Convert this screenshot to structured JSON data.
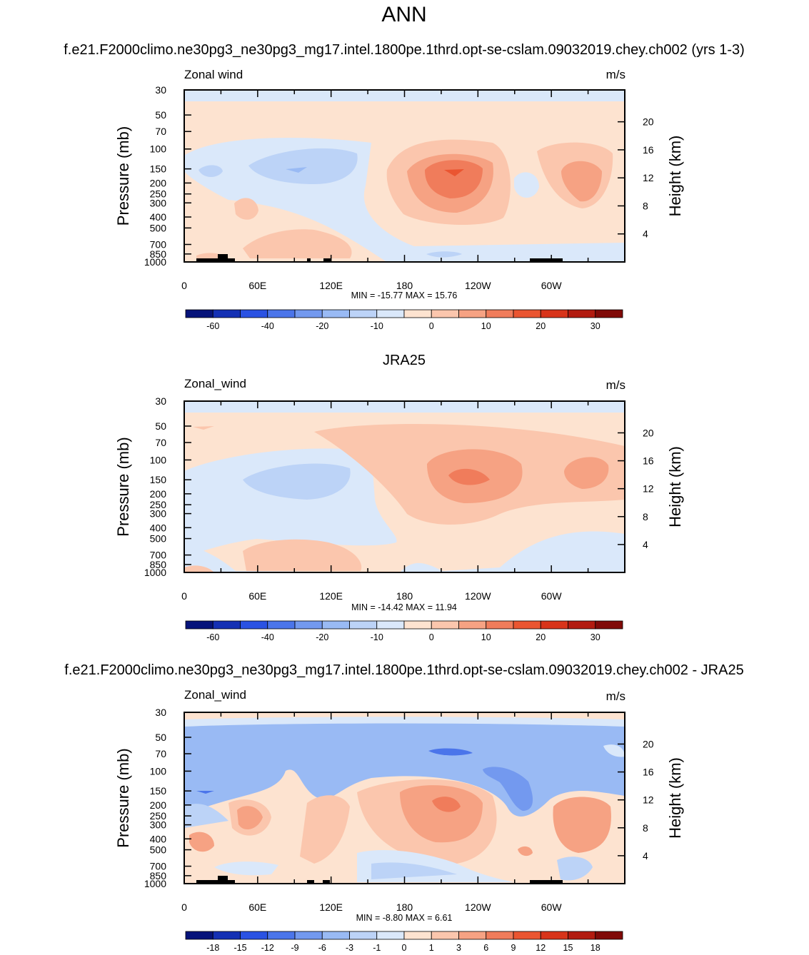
{
  "main_title": "ANN",
  "colors": {
    "pos_levels": [
      "#fde3d0",
      "#fbc6ad",
      "#f6a283",
      "#f07c5b",
      "#ea5531",
      "#d8341a",
      "#b21b10",
      "#800a08"
    ],
    "neg_levels": [
      "#dae8fa",
      "#bcd3f7",
      "#99baf4",
      "#7399ef",
      "#4b75ea",
      "#2a52e3",
      "#1430b4",
      "#06137a"
    ],
    "terrain": "#000000"
  },
  "chart_data": [
    {
      "type": "heatmap",
      "title": "f.e21.F2000climo.ne30pg3_ne30pg3_mg17.intel.1800pe.1thrd.opt-se-cslam.09032019.chey.ch002 (yrs 1-3)",
      "left_label": "Zonal wind",
      "units": "m/s",
      "ylabel": "Pressure (mb)",
      "y2label": "Height (km)",
      "xticks": [
        "0",
        "60E",
        "120E",
        "180",
        "120W",
        "60W"
      ],
      "yticks": [
        "30",
        "50",
        "70",
        "100",
        "150",
        "200",
        "250",
        "300",
        "400",
        "500",
        "700",
        "850",
        "1000"
      ],
      "y2ticks": [
        "20",
        "16",
        "12",
        "8",
        "4"
      ],
      "stats": "MIN = -15.77  MAX =  15.76",
      "colorbar_labels": [
        "-60",
        "-40",
        "-20",
        "-10",
        "0",
        "10",
        "20",
        "30"
      ],
      "min": -15.77,
      "max": 15.76
    },
    {
      "type": "heatmap",
      "title": "JRA25",
      "left_label": "Zonal_wind",
      "units": "m/s",
      "ylabel": "Pressure (mb)",
      "y2label": "Height (km)",
      "xticks": [
        "0",
        "60E",
        "120E",
        "180",
        "120W",
        "60W"
      ],
      "yticks": [
        "30",
        "50",
        "70",
        "100",
        "150",
        "200",
        "250",
        "300",
        "400",
        "500",
        "700",
        "850",
        "1000"
      ],
      "y2ticks": [
        "20",
        "16",
        "12",
        "8",
        "4"
      ],
      "stats": "MIN = -14.42  MAX =  11.94",
      "colorbar_labels": [
        "-60",
        "-40",
        "-20",
        "-10",
        "0",
        "10",
        "20",
        "30"
      ],
      "min": -14.42,
      "max": 11.94
    },
    {
      "type": "heatmap",
      "title": "f.e21.F2000climo.ne30pg3_ne30pg3_mg17.intel.1800pe.1thrd.opt-se-cslam.09032019.chey.ch002 - JRA25",
      "left_label": "Zonal_wind",
      "units": "m/s",
      "ylabel": "Pressure (mb)",
      "y2label": "Height (km)",
      "xticks": [
        "0",
        "60E",
        "120E",
        "180",
        "120W",
        "60W"
      ],
      "yticks": [
        "30",
        "50",
        "70",
        "100",
        "150",
        "200",
        "250",
        "300",
        "400",
        "500",
        "700",
        "850",
        "1000"
      ],
      "y2ticks": [
        "20",
        "16",
        "12",
        "8",
        "4"
      ],
      "stats": "MIN =  -8.80  MAX =   6.61",
      "colorbar_labels": [
        "-18",
        "-15",
        "-12",
        "-9",
        "-6",
        "-3",
        "-1",
        "0",
        "1",
        "3",
        "6",
        "9",
        "12",
        "15",
        "18"
      ],
      "min": -8.8,
      "max": 6.61
    }
  ]
}
